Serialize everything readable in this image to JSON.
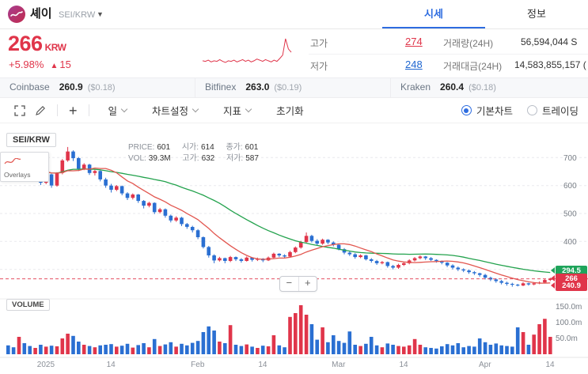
{
  "header": {
    "coin_name": "셰이",
    "pair": "SEI/KRW",
    "tabs": [
      {
        "label": "시세",
        "active": true
      },
      {
        "label": "정보",
        "active": false
      }
    ]
  },
  "price": {
    "current": "266",
    "currency": "KRW",
    "change_percent": "+5.98%",
    "change_arrow": "▲",
    "change_value": "15"
  },
  "stats": {
    "high_label": "고가",
    "high_value": "274",
    "low_label": "저가",
    "low_value": "248",
    "volume_label": "거래량(24H)",
    "volume_value": "56,594,044 S",
    "turnover_label": "거래대금(24H)",
    "turnover_value": "14,583,855,157 ("
  },
  "exchanges": [
    {
      "name": "Coinbase",
      "price": "260.9",
      "usd": "($0.18)"
    },
    {
      "name": "Bitfinex",
      "price": "263.0",
      "usd": "($0.19)"
    },
    {
      "name": "Kraken",
      "price": "260.4",
      "usd": "($0.18)"
    }
  ],
  "toolbar": {
    "interval": "일",
    "chart_settings": "차트설정",
    "indicator": "지표",
    "reset": "초기화",
    "chart_type_basic": "기본차트",
    "chart_type_trading": "트레이딩",
    "zoom_out": "−",
    "zoom_in": "+"
  },
  "chart": {
    "symbol_label": "SEI/KRW",
    "overlays_label": "Overlays",
    "volume_label": "VOLUME",
    "legend": {
      "price_label": "PRICE:",
      "price": "601",
      "open_label": "시가:",
      "open": "614",
      "close_label": "종가:",
      "close": "601",
      "vol_label": "VOL:",
      "vol": "39.3M",
      "high_label": "고가:",
      "high": "632",
      "low_label": "저가:",
      "low": "587"
    },
    "badges": [
      {
        "value": "294.5",
        "color": "#1fa45b"
      },
      {
        "value": "266",
        "color": "#e0354a"
      },
      {
        "value": "240.9",
        "color": "#e0354a"
      }
    ]
  },
  "colors": {
    "up_red": "#e0354a",
    "down_blue": "#2a6fd2",
    "accent_blue": "#2d6ce0",
    "ma_green": "#23a24d",
    "ma_red": "#e2564f"
  },
  "chart_data": {
    "type": "candlestick+volume",
    "interval": "daily",
    "ylim": [
      200,
      800
    ],
    "grid_prices": [
      700,
      600,
      500,
      400,
      300
    ],
    "price_axis": [
      700,
      600,
      500,
      400
    ],
    "volume_axis": [
      {
        "label": "150.0m",
        "value": 150
      },
      {
        "label": "100.0m",
        "value": 100
      },
      {
        "label": "50.0m",
        "value": 50
      }
    ],
    "volume_max": 160,
    "current_price": 266,
    "ma_short_window": 10,
    "ma_long_window": 30,
    "x_ticks": [
      {
        "label": "2025",
        "i": 7
      },
      {
        "label": "14",
        "i": 19
      },
      {
        "label": "Feb",
        "i": 35
      },
      {
        "label": "14",
        "i": 47
      },
      {
        "label": "Mar",
        "i": 61
      },
      {
        "label": "14",
        "i": 73
      },
      {
        "label": "Apr",
        "i": 88
      },
      {
        "label": "14",
        "i": 100
      }
    ],
    "colors": {
      "up": "#e0354a",
      "down": "#2a6fd2",
      "ma_long": "#23a24d",
      "ma_short": "#e2564f"
    },
    "sparkline": [
      251,
      250,
      252,
      249,
      251,
      250,
      253,
      250,
      248,
      251,
      250,
      252,
      249,
      251,
      253,
      250,
      252,
      249,
      251,
      254,
      252,
      250,
      253,
      251,
      249,
      252,
      250,
      255,
      261,
      290,
      272,
      266
    ],
    "candles": [
      [
        690,
        705,
        668,
        672,
        28
      ],
      [
        672,
        680,
        640,
        655,
        22
      ],
      [
        655,
        712,
        650,
        700,
        55
      ],
      [
        700,
        706,
        642,
        648,
        35
      ],
      [
        648,
        655,
        618,
        628,
        26
      ],
      [
        628,
        652,
        622,
        648,
        20
      ],
      [
        648,
        650,
        602,
        610,
        30
      ],
      [
        610,
        645,
        605,
        640,
        24
      ],
      [
        640,
        642,
        592,
        600,
        27
      ],
      [
        600,
        648,
        596,
        645,
        25
      ],
      [
        645,
        695,
        640,
        690,
        50
      ],
      [
        690,
        738,
        685,
        722,
        65
      ],
      [
        722,
        726,
        688,
        698,
        58
      ],
      [
        698,
        702,
        652,
        660,
        40
      ],
      [
        660,
        680,
        655,
        675,
        30
      ],
      [
        675,
        678,
        638,
        645,
        26
      ],
      [
        645,
        660,
        636,
        652,
        22
      ],
      [
        652,
        654,
        615,
        622,
        28
      ],
      [
        622,
        628,
        592,
        600,
        30
      ],
      [
        600,
        606,
        575,
        585,
        32
      ],
      [
        585,
        602,
        580,
        598,
        24
      ],
      [
        598,
        600,
        565,
        572,
        27
      ],
      [
        572,
        576,
        548,
        556,
        33
      ],
      [
        556,
        572,
        550,
        568,
        21
      ],
      [
        568,
        570,
        538,
        545,
        29
      ],
      [
        545,
        548,
        518,
        528,
        35
      ],
      [
        528,
        542,
        522,
        538,
        22
      ],
      [
        538,
        540,
        498,
        505,
        48
      ],
      [
        505,
        520,
        500,
        515,
        26
      ],
      [
        515,
        518,
        485,
        492,
        31
      ],
      [
        492,
        496,
        468,
        475,
        38
      ],
      [
        475,
        490,
        470,
        485,
        24
      ],
      [
        485,
        488,
        455,
        462,
        33
      ],
      [
        462,
        466,
        445,
        452,
        28
      ],
      [
        452,
        456,
        432,
        440,
        36
      ],
      [
        440,
        444,
        408,
        415,
        42
      ],
      [
        415,
        418,
        375,
        380,
        70
      ],
      [
        380,
        384,
        342,
        350,
        88
      ],
      [
        350,
        354,
        322,
        332,
        75
      ],
      [
        332,
        345,
        328,
        340,
        40
      ],
      [
        340,
        342,
        322,
        330,
        35
      ],
      [
        330,
        348,
        326,
        344,
        92
      ],
      [
        344,
        346,
        330,
        336,
        30
      ],
      [
        336,
        340,
        324,
        330,
        26
      ],
      [
        330,
        346,
        328,
        342,
        31
      ],
      [
        342,
        344,
        328,
        334,
        24
      ],
      [
        334,
        342,
        330,
        338,
        20
      ],
      [
        338,
        340,
        326,
        332,
        27
      ],
      [
        332,
        346,
        330,
        342,
        25
      ],
      [
        342,
        360,
        340,
        356,
        60
      ],
      [
        356,
        358,
        344,
        350,
        28
      ],
      [
        350,
        354,
        340,
        346,
        22
      ],
      [
        346,
        366,
        344,
        362,
        118
      ],
      [
        362,
        382,
        358,
        378,
        130
      ],
      [
        378,
        402,
        374,
        398,
        155
      ],
      [
        398,
        432,
        394,
        420,
        125
      ],
      [
        420,
        424,
        396,
        402,
        95
      ],
      [
        402,
        408,
        386,
        392,
        46
      ],
      [
        392,
        410,
        388,
        406,
        85
      ],
      [
        406,
        408,
        390,
        396,
        38
      ],
      [
        396,
        400,
        382,
        388,
        60
      ],
      [
        388,
        392,
        368,
        372,
        42
      ],
      [
        372,
        376,
        354,
        360,
        36
      ],
      [
        360,
        364,
        348,
        354,
        72
      ],
      [
        354,
        358,
        338,
        344,
        30
      ],
      [
        344,
        354,
        340,
        350,
        26
      ],
      [
        350,
        352,
        332,
        336,
        33
      ],
      [
        336,
        340,
        324,
        330,
        55
      ],
      [
        330,
        334,
        316,
        322,
        28
      ],
      [
        322,
        330,
        318,
        326,
        22
      ],
      [
        326,
        328,
        306,
        312,
        34
      ],
      [
        312,
        316,
        300,
        306,
        30
      ],
      [
        306,
        320,
        302,
        316,
        26
      ],
      [
        316,
        326,
        312,
        322,
        24
      ],
      [
        322,
        336,
        318,
        332,
        28
      ],
      [
        332,
        344,
        328,
        340,
        48
      ],
      [
        340,
        350,
        336,
        346,
        30
      ],
      [
        346,
        348,
        334,
        340,
        22
      ],
      [
        340,
        344,
        330,
        334,
        20
      ],
      [
        334,
        336,
        324,
        330,
        18
      ],
      [
        330,
        332,
        318,
        324,
        25
      ],
      [
        324,
        326,
        308,
        314,
        32
      ],
      [
        314,
        318,
        300,
        306,
        28
      ],
      [
        306,
        310,
        294,
        300,
        35
      ],
      [
        300,
        304,
        290,
        296,
        22
      ],
      [
        296,
        300,
        284,
        290,
        26
      ],
      [
        290,
        294,
        280,
        286,
        24
      ],
      [
        286,
        288,
        274,
        280,
        50
      ],
      [
        280,
        284,
        264,
        270,
        38
      ],
      [
        270,
        274,
        258,
        264,
        30
      ],
      [
        264,
        268,
        252,
        258,
        34
      ],
      [
        258,
        262,
        246,
        252,
        28
      ],
      [
        252,
        256,
        242,
        248,
        26
      ],
      [
        248,
        252,
        238,
        245,
        24
      ],
      [
        245,
        248,
        239,
        242,
        85
      ],
      [
        242,
        254,
        240,
        250,
        70
      ],
      [
        250,
        252,
        242,
        246,
        30
      ],
      [
        246,
        254,
        243,
        250,
        62
      ],
      [
        250,
        257,
        247,
        253,
        95
      ],
      [
        253,
        266,
        251,
        262,
        112
      ],
      [
        262,
        270,
        258,
        266,
        55
      ]
    ]
  }
}
